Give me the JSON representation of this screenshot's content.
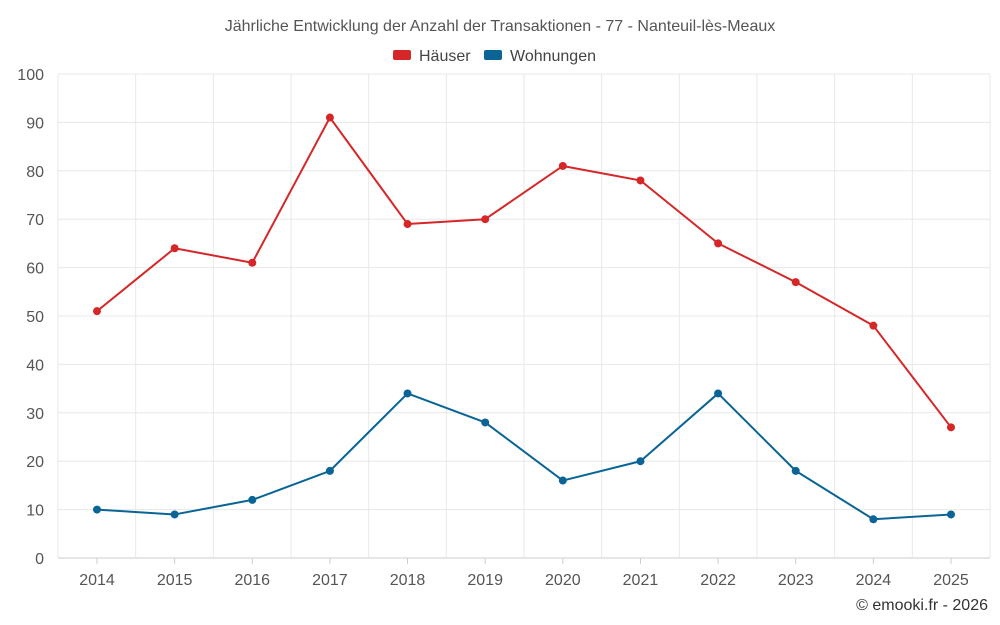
{
  "chart_data": {
    "type": "line",
    "title": "Jährliche Entwicklung der Anzahl der Transaktionen - 77 - Nanteuil-lès-Meaux",
    "categories": [
      "2014",
      "2015",
      "2016",
      "2017",
      "2018",
      "2019",
      "2020",
      "2021",
      "2022",
      "2023",
      "2024",
      "2025"
    ],
    "series": [
      {
        "name": "Häuser",
        "color": "#d62728",
        "values": [
          51,
          64,
          61,
          91,
          69,
          70,
          81,
          78,
          65,
          57,
          48,
          27
        ]
      },
      {
        "name": "Wohnungen",
        "color": "#0a6496",
        "values": [
          10,
          9,
          12,
          18,
          34,
          28,
          16,
          20,
          34,
          18,
          8,
          9
        ]
      }
    ],
    "ylim": [
      0,
      100
    ],
    "yticks": [
      "0",
      "10",
      "20",
      "30",
      "40",
      "50",
      "60",
      "70",
      "80",
      "90",
      "100"
    ],
    "grid": true,
    "legend_position": "top-center",
    "xlabel": "",
    "ylabel": ""
  },
  "credit": "© emooki.fr - 2026"
}
